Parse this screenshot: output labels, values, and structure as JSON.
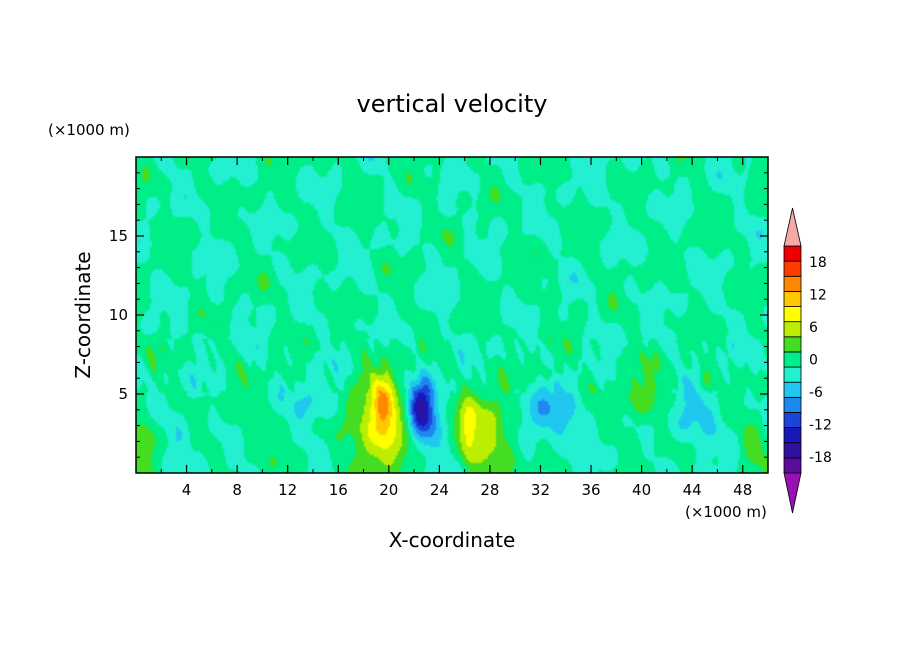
{
  "chart_data": {
    "type": "heatmap",
    "title": "vertical velocity",
    "xlabel": "X-coordinate",
    "ylabel": "Z-coordinate",
    "x_unit": "(×1000 m)",
    "y_unit": "(×1000 m)",
    "xlim": [
      0,
      50
    ],
    "ylim": [
      0,
      20
    ],
    "x_ticks": [
      "4",
      "8",
      "12",
      "16",
      "20",
      "24",
      "28",
      "32",
      "36",
      "40",
      "44",
      "48"
    ],
    "y_ticks": [
      "5",
      "10",
      "15"
    ],
    "colorbar": {
      "levels": [
        -21,
        -18,
        -15,
        -12,
        -9,
        -6,
        -3,
        0,
        3,
        6,
        9,
        12,
        15,
        18,
        21
      ],
      "labels": [
        "18",
        "12",
        "6",
        "0",
        "-6",
        "-12",
        "-18"
      ],
      "colors": [
        "#5a0d9a",
        "#30109e",
        "#1818b8",
        "#1c44d8",
        "#1e88f0",
        "#20c8f0",
        "#22f0d0",
        "#00ee88",
        "#44dd22",
        "#bbee00",
        "#ffff00",
        "#ffc800",
        "#ff8800",
        "#ff3c00",
        "#ee0000"
      ],
      "under_color": "#9a10b4",
      "over_color": "#f4a8a8"
    },
    "features": [
      {
        "x": 19.3,
        "z": 3.0,
        "sx": 1.6,
        "sz": 2.2,
        "amp": 11
      },
      {
        "x": 19.6,
        "z": 4.0,
        "sx": 0.5,
        "sz": 1.2,
        "amp": 7
      },
      {
        "x": 22.7,
        "z": 3.6,
        "sx": 0.9,
        "sz": 1.6,
        "amp": -12
      },
      {
        "x": 22.4,
        "z": 4.4,
        "sx": 0.5,
        "sz": 0.9,
        "amp": -5
      },
      {
        "x": 26.3,
        "z": 2.4,
        "sx": 0.5,
        "sz": 1.6,
        "amp": 6
      },
      {
        "x": 28.0,
        "z": 2.6,
        "sx": 1.5,
        "sz": 1.7,
        "amp": 8
      },
      {
        "x": 32.5,
        "z": 3.6,
        "sx": 1.7,
        "sz": 1.3,
        "amp": -6
      },
      {
        "x": 14.2,
        "z": 4.2,
        "sx": 1.2,
        "sz": 1.1,
        "amp": -4
      },
      {
        "x": 3.5,
        "z": 2.3,
        "sx": 0.8,
        "sz": 0.9,
        "amp": -3.5
      },
      {
        "x": 0.7,
        "z": 2.2,
        "sx": 0.7,
        "sz": 1.2,
        "amp": 5
      },
      {
        "x": 40.0,
        "z": 4.5,
        "sx": 1.3,
        "sz": 1.3,
        "amp": 4.5
      },
      {
        "x": 44.0,
        "z": 3.4,
        "sx": 1.4,
        "sz": 1.1,
        "amp": -5
      },
      {
        "x": 48.8,
        "z": 2.0,
        "sx": 0.8,
        "sz": 0.9,
        "amp": 4
      },
      {
        "x": 9.5,
        "z": 3.0,
        "sx": 1.5,
        "sz": 1.0,
        "amp": 2
      },
      {
        "x": 32.8,
        "z": 6.4,
        "sx": 0.4,
        "sz": 0.4,
        "amp": 4
      },
      {
        "x": 45.0,
        "z": 5.8,
        "sx": 0.4,
        "sz": 0.5,
        "amp": 4
      }
    ]
  }
}
